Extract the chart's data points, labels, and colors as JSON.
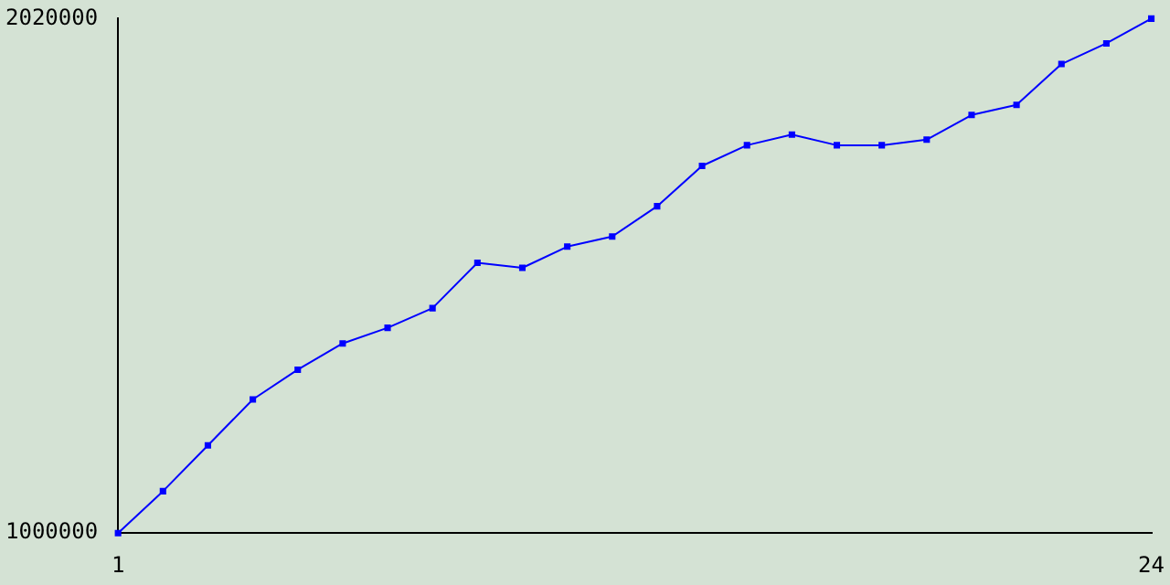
{
  "chart_data": {
    "type": "line",
    "x": [
      1,
      2,
      3,
      4,
      5,
      6,
      7,
      8,
      9,
      10,
      11,
      12,
      13,
      14,
      15,
      16,
      17,
      18,
      19,
      20,
      21,
      22,
      23,
      24
    ],
    "series": [
      {
        "color": "#0000ff",
        "values": [
          1000000,
          1083000,
          1174000,
          1265000,
          1324000,
          1376000,
          1407000,
          1446000,
          1536000,
          1526000,
          1568000,
          1588000,
          1648000,
          1728000,
          1769000,
          1790000,
          1769000,
          1769000,
          1780000,
          1829000,
          1849000,
          1930000,
          1971000,
          2020000
        ]
      }
    ],
    "xlim": [
      1,
      24
    ],
    "xticks": [
      1,
      24
    ],
    "ylim": [
      1000000,
      2020000
    ],
    "yticks": [
      1000000,
      2020000
    ],
    "grid": false,
    "legend": false,
    "marker": "square",
    "line_style": "solid"
  }
}
